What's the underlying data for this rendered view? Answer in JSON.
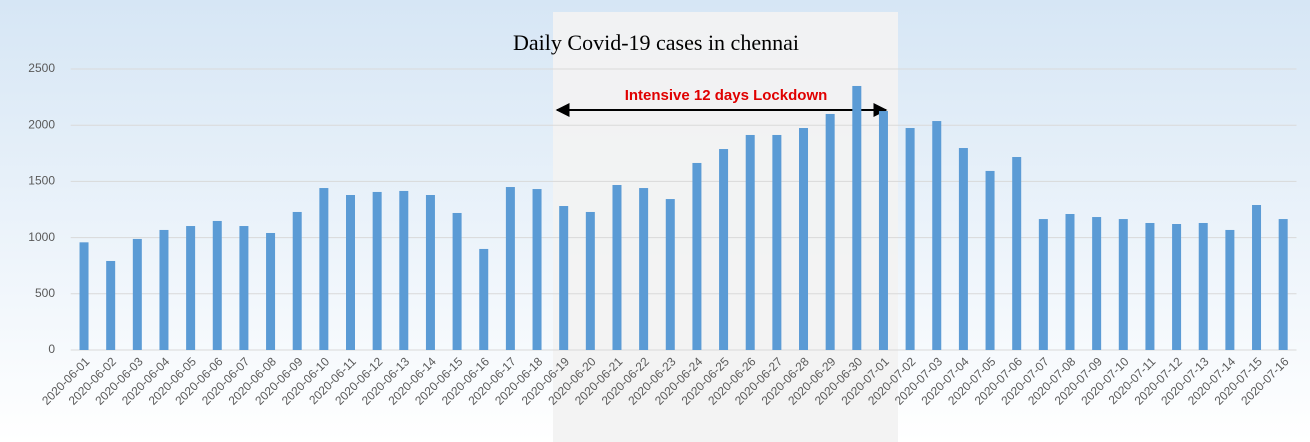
{
  "chart_data": {
    "type": "bar",
    "title": "Daily Covid-19 cases in chennai",
    "annotation": "Intensive 12 days Lockdown",
    "categories": [
      "2020-06-01",
      "2020-06-02",
      "2020-06-03",
      "2020-06-04",
      "2020-06-05",
      "2020-06-06",
      "2020-06-07",
      "2020-06-08",
      "2020-06-09",
      "2020-06-10",
      "2020-06-11",
      "2020-06-12",
      "2020-06-13",
      "2020-06-14",
      "2020-06-15",
      "2020-06-16",
      "2020-06-17",
      "2020-06-18",
      "2020-06-19",
      "2020-06-20",
      "2020-06-21",
      "2020-06-22",
      "2020-06-23",
      "2020-06-24",
      "2020-06-25",
      "2020-06-26",
      "2020-06-27",
      "2020-06-28",
      "2020-06-29",
      "2020-06-30",
      "2020-07-01",
      "2020-07-02",
      "2020-07-03",
      "2020-07-04",
      "2020-07-05",
      "2020-07-06",
      "2020-07-07",
      "2020-07-08",
      "2020-07-09",
      "2020-07-10",
      "2020-07-11",
      "2020-07-12",
      "2020-07-13",
      "2020-07-14",
      "2020-07-15",
      "2020-07-16"
    ],
    "values": [
      958,
      792,
      988,
      1068,
      1103,
      1148,
      1103,
      1041,
      1228,
      1441,
      1379,
      1406,
      1415,
      1379,
      1219,
      899,
      1450,
      1432,
      1281,
      1228,
      1468,
      1441,
      1343,
      1664,
      1788,
      1913,
      1913,
      1975,
      2100,
      2349,
      2126,
      1975,
      2037,
      1797,
      1593,
      1717,
      1165,
      1210,
      1183,
      1165,
      1130,
      1121,
      1130,
      1068,
      1290,
      1165
    ],
    "color": "#5b9bd5",
    "ylim": [
      0,
      2500
    ],
    "yticks": [
      0,
      500,
      1000,
      1500,
      2000,
      2500
    ],
    "grid": true
  }
}
